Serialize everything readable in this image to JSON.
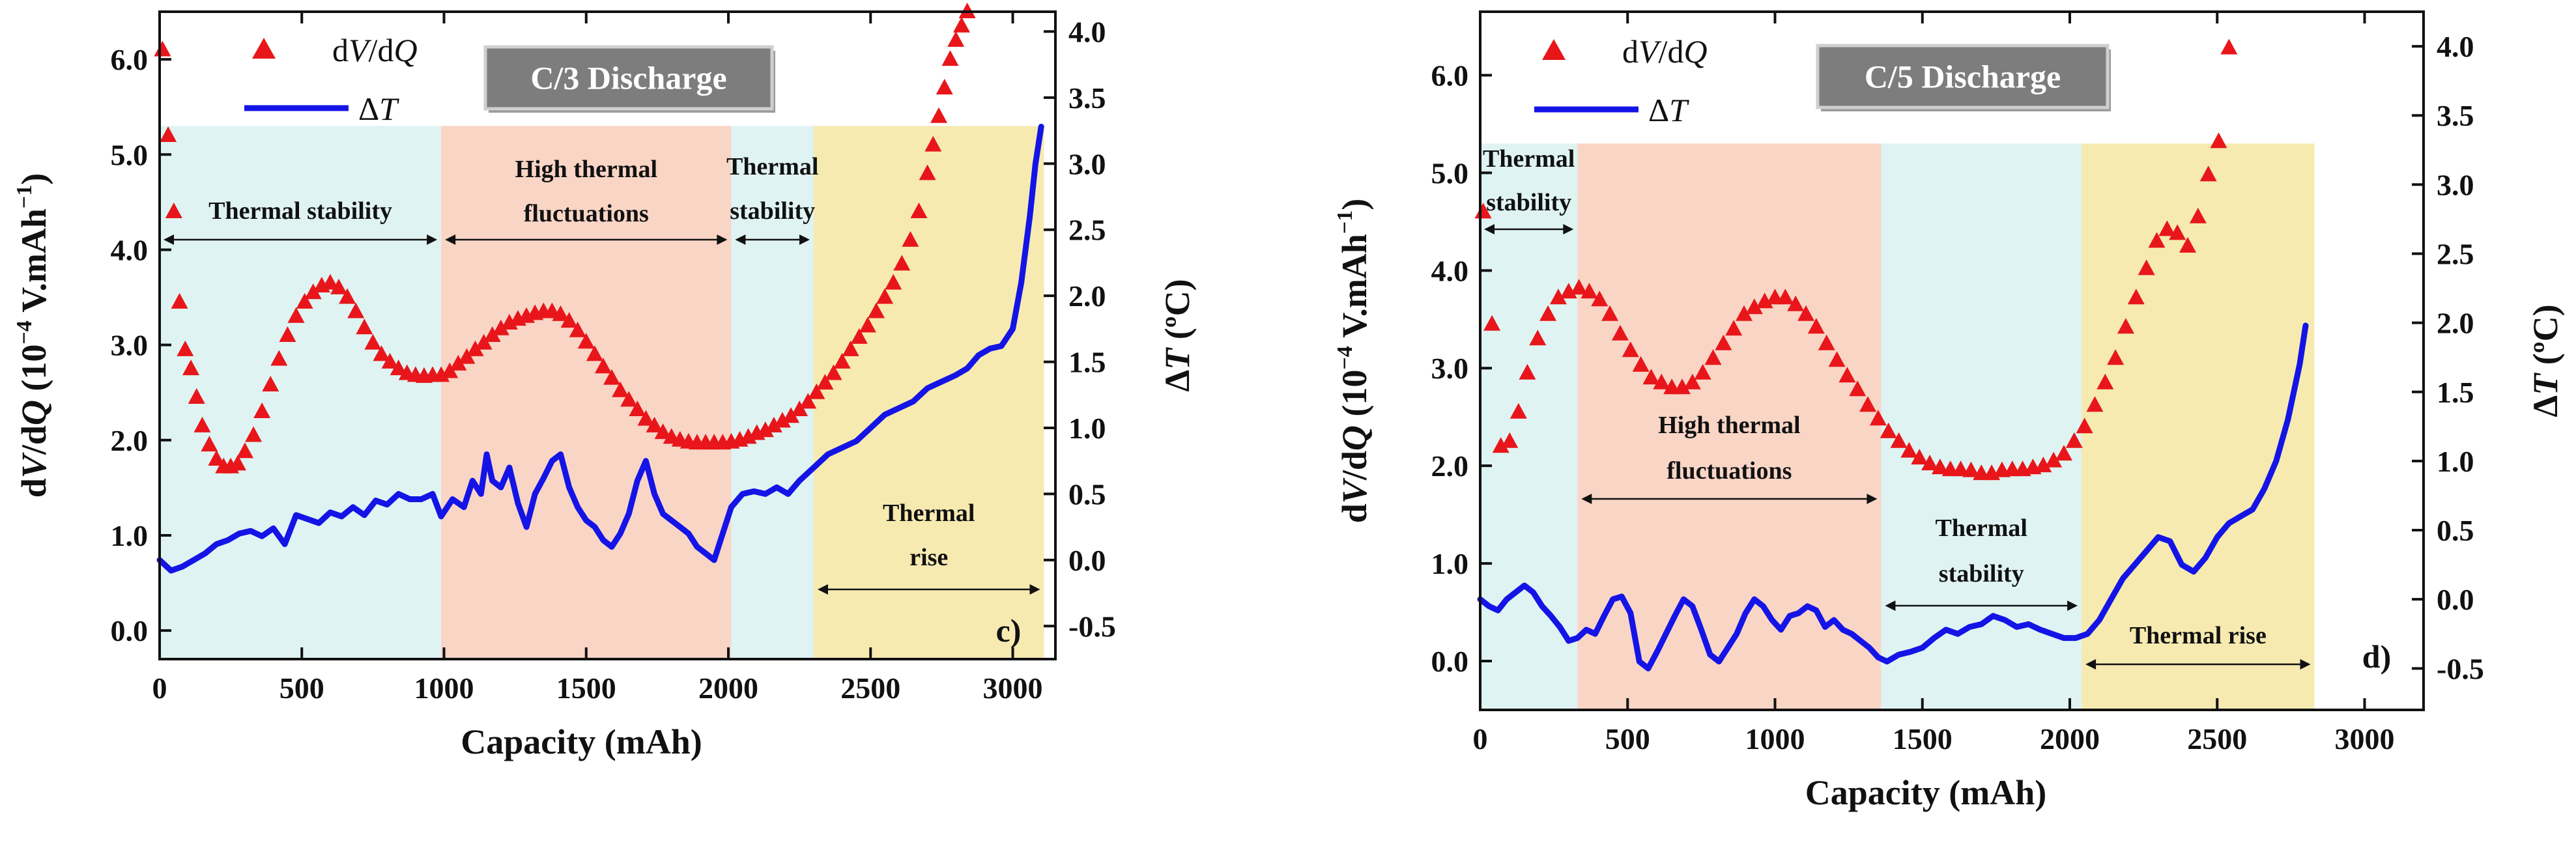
{
  "chart_data": [
    {
      "panel": "c)",
      "type": "line",
      "title": "C/3 Discharge",
      "xlabel": "Capacity (mAh)",
      "ylabel_left": "dV/dQ (10^-4 V.mAh^-1)",
      "ylabel_right": "ΔT (ºC)",
      "xlim": [
        0,
        3150
      ],
      "ylim_left": [
        -0.3,
        6.5
      ],
      "ylim_right": [
        -0.75,
        4.15
      ],
      "x_ticks": [
        0,
        500,
        1000,
        1500,
        2000,
        2500,
        3000
      ],
      "y_left_ticks": [
        "0.0",
        "1.0",
        "2.0",
        "3.0",
        "4.0",
        "5.0",
        "6.0"
      ],
      "y_right_ticks": [
        "-0.5",
        "0.0",
        "0.5",
        "1.0",
        "1.5",
        "2.0",
        "2.5",
        "3.0",
        "3.5",
        "4.0"
      ],
      "legend": [
        "dV/dQ",
        "ΔT"
      ],
      "regions": [
        {
          "x0": 0,
          "x1": 990,
          "color": "#dff3f2",
          "label": [
            "Thermal stability"
          ]
        },
        {
          "x0": 990,
          "x1": 2010,
          "color": "#f9d5c6",
          "label": [
            "High thermal",
            "fluctuations"
          ]
        },
        {
          "x0": 2010,
          "x1": 2300,
          "color": "#dff3f2",
          "label": [
            "Thermal",
            "stability"
          ]
        },
        {
          "x0": 2300,
          "x1": 3110,
          "color": "#f6eab1",
          "label": [
            "Thermal",
            "rise"
          ]
        }
      ],
      "series": [
        {
          "name": "dV/dQ",
          "axis": "left",
          "marker": "triangle",
          "color": "#e8161a",
          "x": [
            10,
            30,
            50,
            70,
            90,
            110,
            130,
            150,
            175,
            200,
            225,
            250,
            275,
            300,
            330,
            360,
            390,
            420,
            450,
            480,
            510,
            540,
            570,
            600,
            630,
            660,
            690,
            720,
            750,
            780,
            810,
            840,
            870,
            900,
            930,
            960,
            990,
            1020,
            1050,
            1080,
            1110,
            1140,
            1170,
            1200,
            1230,
            1260,
            1290,
            1320,
            1350,
            1380,
            1410,
            1440,
            1470,
            1500,
            1530,
            1560,
            1590,
            1620,
            1650,
            1680,
            1710,
            1740,
            1770,
            1800,
            1830,
            1860,
            1890,
            1920,
            1950,
            1980,
            2010,
            2040,
            2070,
            2100,
            2130,
            2160,
            2190,
            2220,
            2250,
            2280,
            2310,
            2340,
            2370,
            2400,
            2430,
            2460,
            2490,
            2520,
            2550,
            2580,
            2610,
            2640,
            2670,
            2700,
            2720,
            2740,
            2760,
            2780,
            2800,
            2820,
            2840
          ],
          "y": [
            6.1,
            5.2,
            4.4,
            3.45,
            2.95,
            2.75,
            2.45,
            2.15,
            1.95,
            1.8,
            1.72,
            1.72,
            1.75,
            1.88,
            2.05,
            2.3,
            2.58,
            2.85,
            3.1,
            3.3,
            3.45,
            3.55,
            3.62,
            3.65,
            3.6,
            3.5,
            3.35,
            3.18,
            3.02,
            2.9,
            2.82,
            2.75,
            2.7,
            2.68,
            2.67,
            2.68,
            2.68,
            2.72,
            2.8,
            2.87,
            2.95,
            3.02,
            3.1,
            3.17,
            3.23,
            3.27,
            3.3,
            3.33,
            3.35,
            3.35,
            3.32,
            3.25,
            3.15,
            3.03,
            2.9,
            2.77,
            2.65,
            2.52,
            2.42,
            2.32,
            2.22,
            2.15,
            2.08,
            2.03,
            2.0,
            1.98,
            1.97,
            1.97,
            1.97,
            1.97,
            1.98,
            2.0,
            2.03,
            2.07,
            2.1,
            2.15,
            2.2,
            2.25,
            2.32,
            2.4,
            2.5,
            2.6,
            2.7,
            2.82,
            2.95,
            3.08,
            3.2,
            3.35,
            3.5,
            3.65,
            3.85,
            4.1,
            4.4,
            4.8,
            5.1,
            5.4,
            5.7,
            6.0,
            6.2,
            6.35,
            6.5
          ]
        },
        {
          "name": "ΔT",
          "axis": "right",
          "marker": "line",
          "color": "#1414e6",
          "x": [
            0,
            40,
            80,
            120,
            160,
            200,
            240,
            280,
            320,
            360,
            400,
            440,
            480,
            520,
            560,
            600,
            640,
            680,
            720,
            760,
            800,
            840,
            880,
            920,
            960,
            990,
            1030,
            1070,
            1100,
            1130,
            1150,
            1170,
            1200,
            1230,
            1260,
            1290,
            1320,
            1350,
            1380,
            1410,
            1440,
            1470,
            1500,
            1530,
            1560,
            1590,
            1620,
            1650,
            1680,
            1710,
            1740,
            1770,
            1800,
            1830,
            1860,
            1890,
            1920,
            1950,
            1980,
            2010,
            2050,
            2090,
            2130,
            2170,
            2210,
            2250,
            2300,
            2350,
            2400,
            2450,
            2500,
            2550,
            2600,
            2650,
            2700,
            2750,
            2800,
            2840,
            2880,
            2920,
            2960,
            3000,
            3030,
            3060,
            3080,
            3100
          ],
          "y": [
            0.0,
            -0.08,
            -0.05,
            0.0,
            0.05,
            0.12,
            0.15,
            0.2,
            0.22,
            0.18,
            0.24,
            0.12,
            0.34,
            0.31,
            0.28,
            0.36,
            0.33,
            0.4,
            0.34,
            0.45,
            0.42,
            0.5,
            0.46,
            0.46,
            0.5,
            0.33,
            0.46,
            0.4,
            0.6,
            0.5,
            0.8,
            0.6,
            0.55,
            0.7,
            0.43,
            0.25,
            0.5,
            0.62,
            0.75,
            0.8,
            0.55,
            0.4,
            0.3,
            0.25,
            0.15,
            0.1,
            0.2,
            0.35,
            0.6,
            0.75,
            0.5,
            0.35,
            0.3,
            0.25,
            0.2,
            0.1,
            0.05,
            0.0,
            0.2,
            0.4,
            0.5,
            0.52,
            0.5,
            0.55,
            0.5,
            0.6,
            0.7,
            0.8,
            0.85,
            0.9,
            1.0,
            1.1,
            1.15,
            1.2,
            1.3,
            1.35,
            1.4,
            1.45,
            1.55,
            1.6,
            1.62,
            1.75,
            2.1,
            2.6,
            3.0,
            3.28
          ]
        }
      ]
    },
    {
      "panel": "d)",
      "type": "line",
      "title": "C/5 Discharge",
      "xlabel": "Capacity (mAh)",
      "ylabel_left": "dV/dQ (10^-4 V.mAh^-1)",
      "ylabel_right": "ΔT (ºC)",
      "xlim": [
        0,
        3200
      ],
      "ylim_left": [
        -0.5,
        6.65
      ],
      "ylim_right": [
        -0.8,
        4.25
      ],
      "x_ticks": [
        0,
        500,
        1000,
        1500,
        2000,
        2500,
        3000
      ],
      "y_left_ticks": [
        "0.0",
        "1.0",
        "2.0",
        "3.0",
        "4.0",
        "5.0",
        "6.0"
      ],
      "y_right_ticks": [
        "-0.5",
        "0.0",
        "0.5",
        "1.0",
        "1.5",
        "2.0",
        "2.5",
        "3.0",
        "3.5",
        "4.0"
      ],
      "legend": [
        "dV/dQ",
        "ΔT"
      ],
      "regions": [
        {
          "x0": 0,
          "x1": 330,
          "color": "#dff3f2",
          "label": [
            "Thermal",
            "stability"
          ]
        },
        {
          "x0": 330,
          "x1": 1360,
          "color": "#f9d5c6",
          "label": [
            "High thermal",
            "fluctuations"
          ]
        },
        {
          "x0": 1360,
          "x1": 2040,
          "color": "#dff3f2",
          "label": [
            "Thermal",
            "stability"
          ]
        },
        {
          "x0": 2040,
          "x1": 2830,
          "color": "#f6eab1",
          "label": [
            "Thermal rise"
          ]
        }
      ],
      "series": [
        {
          "name": "dV/dQ",
          "axis": "left",
          "marker": "triangle",
          "color": "#e8161a",
          "x": [
            10,
            40,
            70,
            100,
            130,
            160,
            195,
            230,
            265,
            300,
            335,
            370,
            405,
            440,
            475,
            510,
            545,
            580,
            615,
            650,
            685,
            720,
            755,
            790,
            825,
            860,
            895,
            930,
            965,
            1000,
            1035,
            1070,
            1105,
            1140,
            1175,
            1210,
            1245,
            1280,
            1315,
            1350,
            1385,
            1420,
            1455,
            1490,
            1525,
            1560,
            1595,
            1630,
            1665,
            1700,
            1735,
            1770,
            1805,
            1840,
            1875,
            1910,
            1945,
            1980,
            2015,
            2050,
            2085,
            2120,
            2155,
            2190,
            2225,
            2260,
            2295,
            2330,
            2365,
            2400,
            2435,
            2470,
            2505,
            2540
          ],
          "y": [
            4.6,
            3.45,
            2.2,
            2.25,
            2.55,
            2.95,
            3.3,
            3.55,
            3.72,
            3.78,
            3.82,
            3.78,
            3.7,
            3.55,
            3.35,
            3.18,
            3.03,
            2.9,
            2.85,
            2.8,
            2.8,
            2.85,
            2.95,
            3.1,
            3.25,
            3.4,
            3.55,
            3.62,
            3.68,
            3.72,
            3.72,
            3.65,
            3.55,
            3.42,
            3.25,
            3.08,
            2.92,
            2.78,
            2.62,
            2.48,
            2.35,
            2.25,
            2.15,
            2.08,
            2.02,
            1.98,
            1.96,
            1.96,
            1.95,
            1.92,
            1.92,
            1.95,
            1.96,
            1.96,
            1.98,
            2.0,
            2.05,
            2.12,
            2.25,
            2.4,
            2.62,
            2.85,
            3.1,
            3.42,
            3.72,
            4.02,
            4.3,
            4.42,
            4.38,
            4.25,
            4.55,
            4.98,
            5.32,
            6.28
          ]
        },
        {
          "name": "ΔT",
          "axis": "right",
          "marker": "line",
          "color": "#1414e6",
          "x": [
            0,
            30,
            60,
            90,
            120,
            150,
            180,
            210,
            240,
            270,
            300,
            330,
            360,
            390,
            420,
            450,
            480,
            510,
            540,
            570,
            600,
            630,
            660,
            690,
            720,
            750,
            780,
            810,
            840,
            870,
            900,
            930,
            960,
            990,
            1020,
            1050,
            1080,
            1110,
            1140,
            1170,
            1200,
            1230,
            1260,
            1290,
            1320,
            1350,
            1380,
            1420,
            1460,
            1500,
            1540,
            1580,
            1620,
            1660,
            1700,
            1740,
            1780,
            1820,
            1860,
            1900,
            1940,
            1980,
            2020,
            2060,
            2100,
            2140,
            2180,
            2220,
            2260,
            2300,
            2340,
            2380,
            2420,
            2460,
            2500,
            2540,
            2580,
            2620,
            2660,
            2700,
            2740,
            2780,
            2800
          ],
          "y": [
            0.0,
            -0.05,
            -0.08,
            0.0,
            0.05,
            0.1,
            0.05,
            -0.05,
            -0.12,
            -0.2,
            -0.3,
            -0.28,
            -0.22,
            -0.25,
            -0.12,
            0.0,
            0.02,
            -0.1,
            -0.45,
            -0.5,
            -0.38,
            -0.25,
            -0.12,
            0.0,
            -0.05,
            -0.22,
            -0.4,
            -0.45,
            -0.35,
            -0.25,
            -0.1,
            0.0,
            -0.05,
            -0.15,
            -0.22,
            -0.12,
            -0.1,
            -0.05,
            -0.08,
            -0.2,
            -0.15,
            -0.22,
            -0.25,
            -0.3,
            -0.35,
            -0.42,
            -0.45,
            -0.4,
            -0.38,
            -0.35,
            -0.28,
            -0.22,
            -0.25,
            -0.2,
            -0.18,
            -0.12,
            -0.15,
            -0.2,
            -0.18,
            -0.22,
            -0.25,
            -0.28,
            -0.28,
            -0.25,
            -0.15,
            0.0,
            0.15,
            0.25,
            0.35,
            0.45,
            0.42,
            0.25,
            0.2,
            0.3,
            0.45,
            0.55,
            0.6,
            0.65,
            0.8,
            1.0,
            1.3,
            1.7,
            1.98
          ]
        }
      ]
    }
  ]
}
